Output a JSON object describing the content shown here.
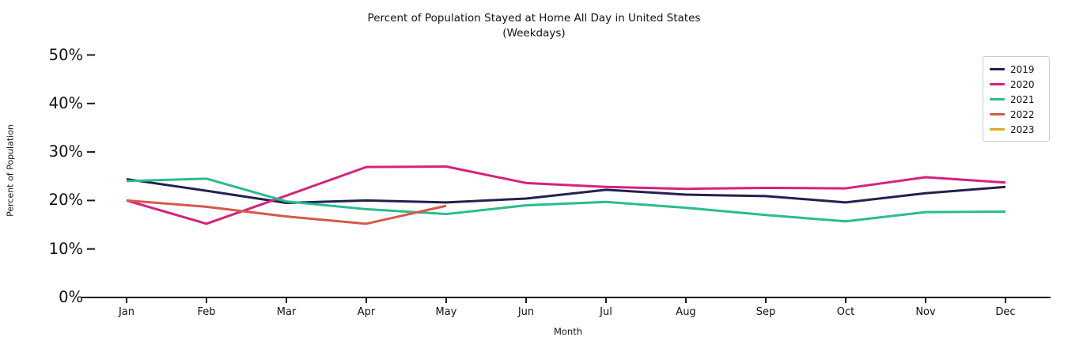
{
  "chart": {
    "title_line1": "Percent of Population Stayed at Home All Day in United States",
    "title_line2": "(Weekdays)",
    "ylabel": "Percent of Population",
    "xlabel": "Month"
  },
  "chart_data": {
    "type": "line",
    "title": "Percent of Population Stayed at Home All Day in United States (Weekdays)",
    "xlabel": "Month",
    "ylabel": "Percent of Population",
    "categories": [
      "Jan",
      "Feb",
      "Mar",
      "Apr",
      "May",
      "Jun",
      "Jul",
      "Aug",
      "Sep",
      "Oct",
      "Nov",
      "Dec"
    ],
    "ytick_labels": [
      "0%",
      "10%",
      "20%",
      "30%",
      "40%",
      "50%"
    ],
    "ytick_values": [
      0,
      10,
      20,
      30,
      40,
      50
    ],
    "ylim": [
      0,
      52.5
    ],
    "grid": false,
    "legend_position": "upper right",
    "line_width": 3,
    "axis_color": "#1a1a1a",
    "series": [
      {
        "name": "2019",
        "color": "#232150",
        "values": [
          24.4,
          22.0,
          19.5,
          20.0,
          19.6,
          20.4,
          22.2,
          21.2,
          20.9,
          19.6,
          21.5,
          22.8
        ]
      },
      {
        "name": "2020",
        "color": "#d6217e",
        "values": [
          20.0,
          15.2,
          21.0,
          26.9,
          27.0,
          23.6,
          22.8,
          22.4,
          22.6,
          22.5,
          24.8,
          23.7
        ]
      },
      {
        "name": "2021",
        "color": "#29bd8e",
        "values": [
          24.0,
          24.5,
          19.8,
          18.2,
          17.2,
          19.0,
          19.7,
          18.5,
          17.0,
          15.7,
          17.6,
          17.7
        ]
      },
      {
        "name": "2022",
        "color": "#d45a4a",
        "values": [
          20.0,
          18.7,
          16.7,
          15.2,
          18.9
        ]
      },
      {
        "name": "2023",
        "color": "#dcae1e",
        "values": []
      }
    ]
  }
}
